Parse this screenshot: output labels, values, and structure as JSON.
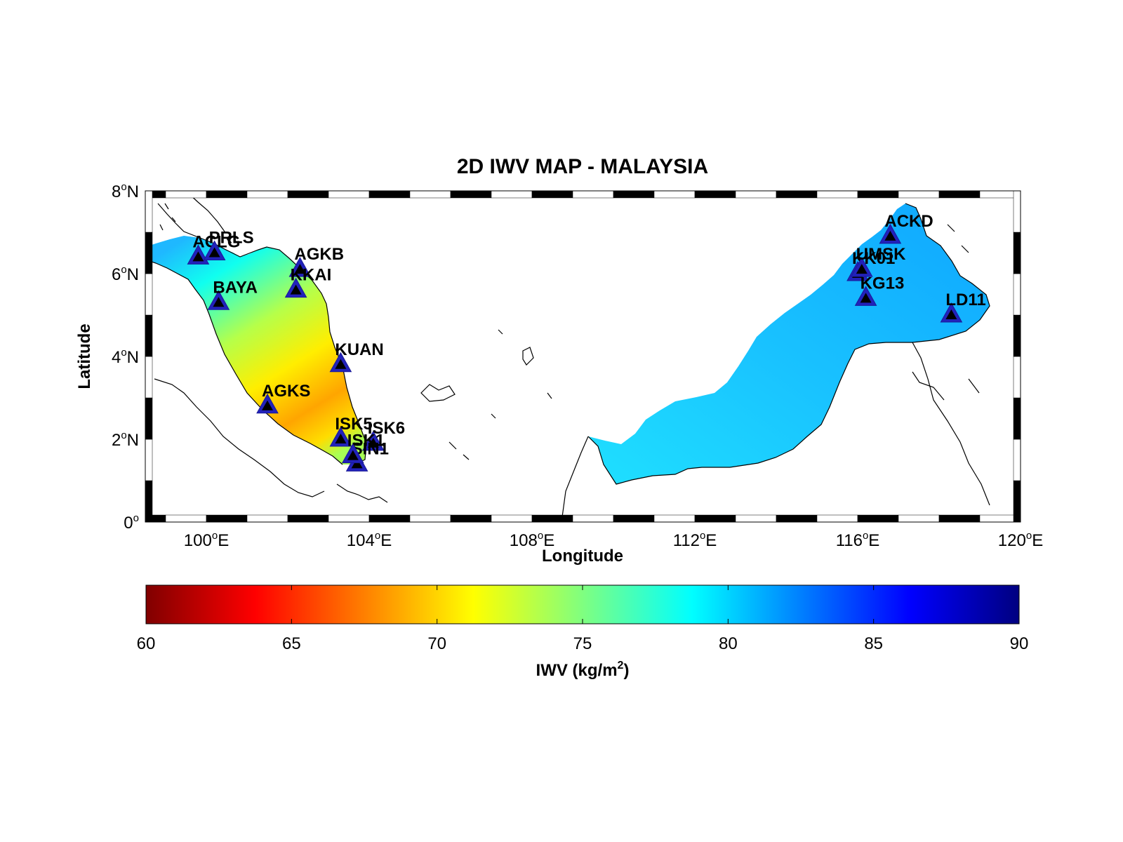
{
  "map": {
    "title": "2D IWV MAP - MALAYSIA",
    "xlabel": "Longitude",
    "ylabel": "Latitude",
    "x_ticks": [
      {
        "deg": "100",
        "suffix": "E"
      },
      {
        "deg": "104",
        "suffix": "E"
      },
      {
        "deg": "108",
        "suffix": "E"
      },
      {
        "deg": "112",
        "suffix": "E"
      },
      {
        "deg": "116",
        "suffix": "E"
      },
      {
        "deg": "120",
        "suffix": "E"
      }
    ],
    "y_ticks": [
      {
        "deg": "0",
        "suffix": ""
      },
      {
        "deg": "2",
        "suffix": "N"
      },
      {
        "deg": "4",
        "suffix": "N"
      },
      {
        "deg": "6",
        "suffix": "N"
      },
      {
        "deg": "8",
        "suffix": "N"
      }
    ],
    "stations": [
      {
        "name": "ACLG",
        "lon": 99.8,
        "lat": 6.4
      },
      {
        "name": "PRLS",
        "lon": 100.2,
        "lat": 6.5
      },
      {
        "name": "AGKB",
        "lon": 102.3,
        "lat": 6.1
      },
      {
        "name": "KKAI",
        "lon": 102.2,
        "lat": 5.6
      },
      {
        "name": "BAYA",
        "lon": 100.3,
        "lat": 5.3
      },
      {
        "name": "KUAN",
        "lon": 103.3,
        "lat": 3.8
      },
      {
        "name": "AGKS",
        "lon": 101.5,
        "lat": 2.8
      },
      {
        "name": "ISK5",
        "lon": 103.3,
        "lat": 2.0
      },
      {
        "name": "ISK6",
        "lon": 104.1,
        "lat": 1.9
      },
      {
        "name": "SIN1",
        "lon": 103.7,
        "lat": 1.4
      },
      {
        "name": "ISK1",
        "lon": 103.6,
        "lat": 1.6
      },
      {
        "name": "ACKD",
        "lon": 116.8,
        "lat": 6.9
      },
      {
        "name": "KK01",
        "lon": 116.0,
        "lat": 6.0
      },
      {
        "name": "UMSK",
        "lon": 116.1,
        "lat": 6.1
      },
      {
        "name": "KG13",
        "lon": 116.2,
        "lat": 5.4
      },
      {
        "name": "LD11",
        "lon": 118.3,
        "lat": 5.0
      }
    ],
    "colors": {
      "station_fill": "#2222bb",
      "station_marker": "#000000"
    }
  },
  "colorbar": {
    "label": "IWV (kg/m",
    "label_sup": "2",
    "label_end": ")",
    "ticks": [
      "60",
      "65",
      "70",
      "75",
      "80",
      "85",
      "90"
    ],
    "min": 60,
    "max": 90
  }
}
